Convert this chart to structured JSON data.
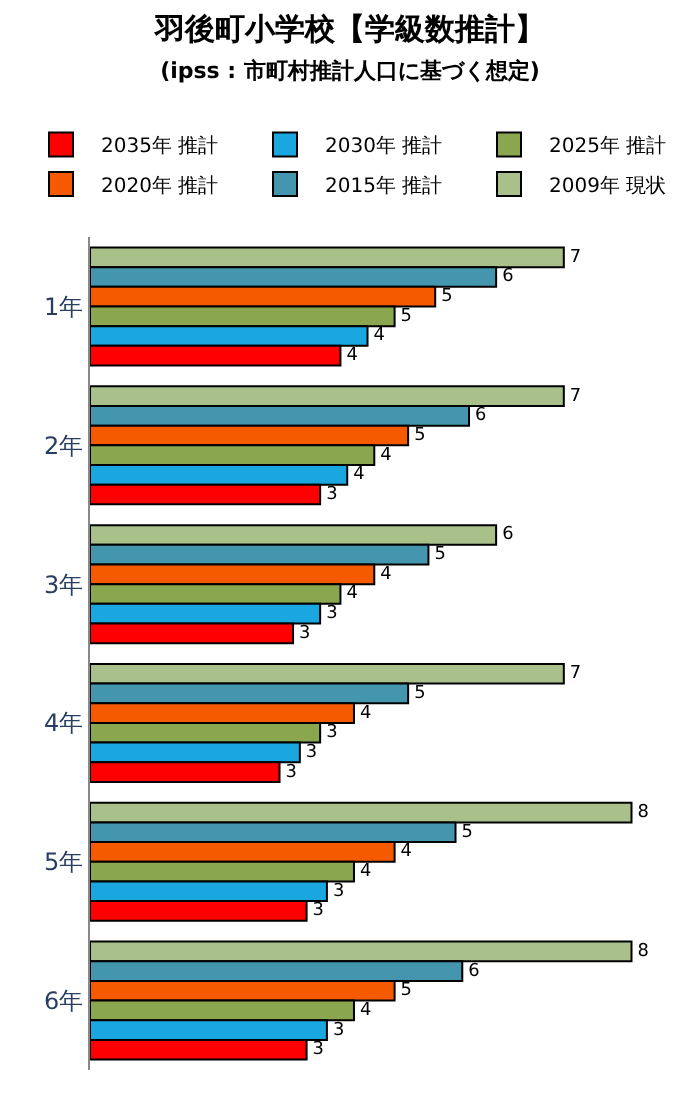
{
  "chart_data": {
    "type": "bar",
    "orientation": "horizontal",
    "title": "羽後町小学校【学級数推計】",
    "subtitle": "(ipss : 市町村推計人口に基づく想定)",
    "legend": "top",
    "tick_labels": "y",
    "categories": [
      "1年",
      "2年",
      "3年",
      "4年",
      "5年",
      "6年"
    ],
    "series": [
      {
        "name": "2035年 推計",
        "color": "#ff0000",
        "values": [
          3.7,
          3.4,
          3.0,
          2.8,
          3.2,
          3.2
        ],
        "value_labels": [
          "4",
          "3",
          "3",
          "3",
          "3",
          "3"
        ]
      },
      {
        "name": "2030年 推計",
        "color": "#1aa7e0",
        "values": [
          4.1,
          3.8,
          3.4,
          3.1,
          3.5,
          3.5
        ],
        "value_labels": [
          "4",
          "4",
          "3",
          "3",
          "3",
          "3"
        ]
      },
      {
        "name": "2025年 推計",
        "color": "#8aa64e",
        "values": [
          4.5,
          4.2,
          3.7,
          3.4,
          3.9,
          3.9
        ],
        "value_labels": [
          "5",
          "4",
          "4",
          "3",
          "4",
          "4"
        ]
      },
      {
        "name": "2020年 推計",
        "color": "#f55a00",
        "values": [
          5.1,
          4.7,
          4.2,
          3.9,
          4.5,
          4.5
        ],
        "value_labels": [
          "5",
          "5",
          "4",
          "4",
          "4",
          "5"
        ]
      },
      {
        "name": "2015年 推計",
        "color": "#4496ae",
        "values": [
          6.0,
          5.6,
          5.0,
          4.7,
          5.4,
          5.5
        ],
        "value_labels": [
          "6",
          "6",
          "5",
          "5",
          "5",
          "6"
        ]
      },
      {
        "name": "2009年 現状",
        "color": "#a9c08a",
        "values": [
          7.0,
          7.0,
          6.0,
          7.0,
          8.0,
          8.0
        ],
        "value_labels": [
          "7",
          "7",
          "6",
          "7",
          "8",
          "8"
        ]
      }
    ]
  }
}
